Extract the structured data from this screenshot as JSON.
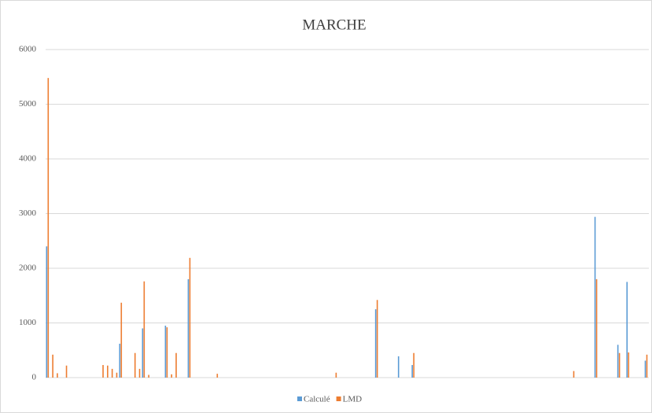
{
  "chart_data": {
    "type": "bar",
    "title": "MARCHE",
    "categories": [
      null,
      null,
      null,
      null,
      null,
      null,
      null,
      null,
      null,
      null,
      null,
      null,
      null,
      null,
      null,
      null,
      null,
      null,
      null,
      null,
      null,
      null,
      null,
      null,
      null,
      null,
      null,
      null,
      null,
      null,
      null,
      null,
      null,
      null,
      null,
      null,
      null,
      null,
      null,
      null,
      null,
      null,
      null,
      null,
      null,
      null,
      null,
      null,
      null,
      null,
      null,
      null,
      null,
      null,
      null,
      null,
      null,
      null,
      null,
      null,
      null,
      null,
      null,
      null,
      null,
      null,
      null,
      null,
      null,
      null,
      null,
      null,
      null,
      null,
      null,
      null,
      null,
      null,
      null,
      null,
      null,
      null,
      null,
      null,
      null,
      null,
      null,
      null,
      null,
      null,
      null,
      null,
      null,
      null,
      null,
      null,
      null,
      null,
      null,
      null,
      null,
      null,
      null,
      null,
      null,
      null,
      null,
      null,
      null,
      null,
      null,
      null,
      null,
      null,
      null,
      null,
      null,
      null,
      null,
      null,
      null,
      null,
      null,
      null,
      null,
      null,
      null,
      null,
      null,
      null,
      null,
      null
    ],
    "series": [
      {
        "name": "Calculé",
        "color": "#5b9bd5",
        "values": [
          2400,
          0,
          0,
          0,
          0,
          0,
          0,
          0,
          0,
          0,
          0,
          0,
          0,
          0,
          0,
          0,
          620,
          0,
          0,
          0,
          0,
          900,
          0,
          0,
          0,
          0,
          950,
          0,
          0,
          0,
          0,
          1800,
          0,
          0,
          0,
          0,
          0,
          0,
          0,
          0,
          0,
          0,
          0,
          0,
          0,
          0,
          0,
          0,
          0,
          0,
          0,
          0,
          0,
          0,
          0,
          0,
          0,
          0,
          0,
          0,
          0,
          0,
          0,
          0,
          0,
          0,
          0,
          0,
          0,
          0,
          0,
          0,
          1250,
          0,
          0,
          0,
          0,
          390,
          0,
          0,
          230,
          0,
          0,
          0,
          0,
          0,
          0,
          0,
          0,
          0,
          0,
          0,
          0,
          0,
          0,
          0,
          0,
          0,
          0,
          0,
          0,
          0,
          0,
          0,
          0,
          0,
          0,
          0,
          0,
          0,
          0,
          0,
          0,
          0,
          0,
          0,
          0,
          0,
          0,
          0,
          2940,
          0,
          0,
          0,
          0,
          600,
          0,
          1750,
          0,
          0,
          0,
          310
        ]
      },
      {
        "name": "LMD",
        "color": "#ed7d31",
        "values": [
          5480,
          420,
          80,
          0,
          220,
          0,
          0,
          0,
          0,
          0,
          0,
          0,
          230,
          220,
          160,
          90,
          1370,
          0,
          0,
          450,
          160,
          1760,
          50,
          0,
          0,
          0,
          920,
          60,
          450,
          0,
          0,
          2190,
          0,
          0,
          0,
          0,
          0,
          70,
          0,
          0,
          0,
          0,
          0,
          0,
          0,
          0,
          0,
          0,
          0,
          0,
          0,
          0,
          0,
          0,
          0,
          0,
          0,
          0,
          0,
          0,
          0,
          0,
          0,
          90,
          0,
          0,
          0,
          0,
          0,
          0,
          0,
          0,
          1420,
          0,
          0,
          0,
          0,
          0,
          0,
          0,
          450,
          0,
          0,
          0,
          0,
          0,
          0,
          0,
          0,
          0,
          0,
          0,
          0,
          0,
          0,
          0,
          0,
          0,
          0,
          0,
          0,
          0,
          0,
          0,
          0,
          0,
          0,
          0,
          0,
          0,
          0,
          0,
          0,
          0,
          0,
          120,
          0,
          0,
          0,
          0,
          1800,
          0,
          0,
          0,
          0,
          450,
          0,
          460,
          0,
          0,
          0,
          420
        ]
      }
    ],
    "ylim": [
      0,
      6000
    ],
    "yticks": [
      0,
      1000,
      2000,
      3000,
      4000,
      5000,
      6000
    ],
    "grid": true,
    "legend": "bottom"
  }
}
